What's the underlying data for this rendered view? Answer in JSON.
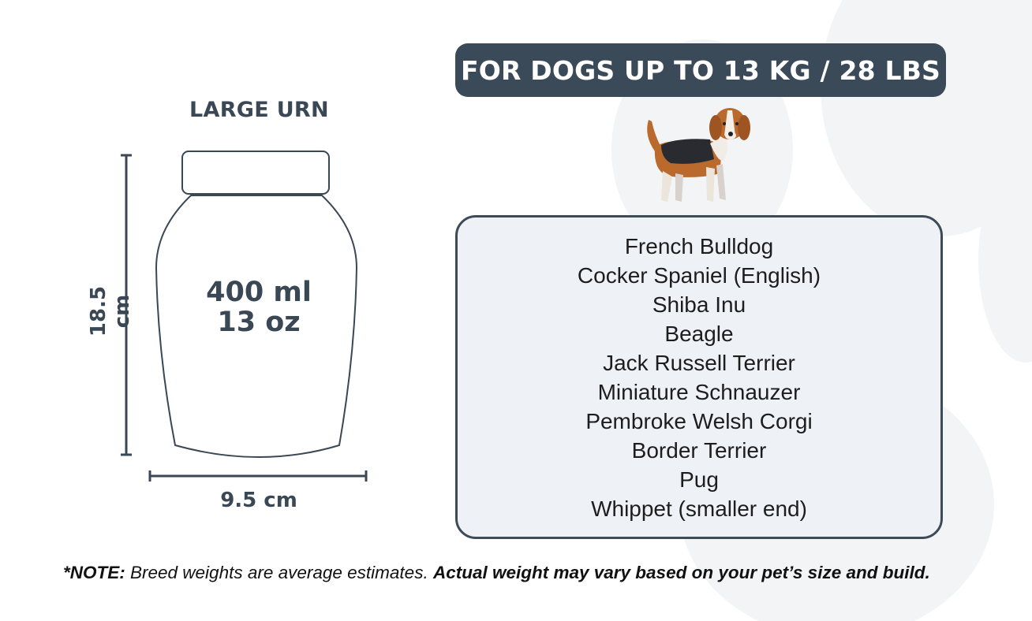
{
  "banner": {
    "text": "FOR DOGS UP TO 13 KG / 28 LBS",
    "background": "#3a4a58"
  },
  "urn": {
    "title": "LARGE URN",
    "volume_ml": "400 ml",
    "volume_oz": "13 oz",
    "height": "18.5 cm",
    "width": "9.5 cm"
  },
  "breeds": [
    "French Bulldog",
    "Cocker Spaniel (English)",
    "Shiba Inu",
    "Beagle",
    "Jack Russell Terrier",
    "Miniature Schnauzer",
    "Pembroke Welsh Corgi",
    "Border Terrier",
    "Pug",
    "Whippet (smaller end)"
  ],
  "note": {
    "label": "*NOTE:",
    "text": " Breed weights are average estimates. ",
    "emphasis": "Actual weight may vary based on your pet’s size and build."
  },
  "illustration": {
    "icon": "beagle-dog-illustration"
  },
  "colors": {
    "dark": "#3a4a58",
    "box_fill": "#eef2f7",
    "paw": "#f3f4f6"
  }
}
